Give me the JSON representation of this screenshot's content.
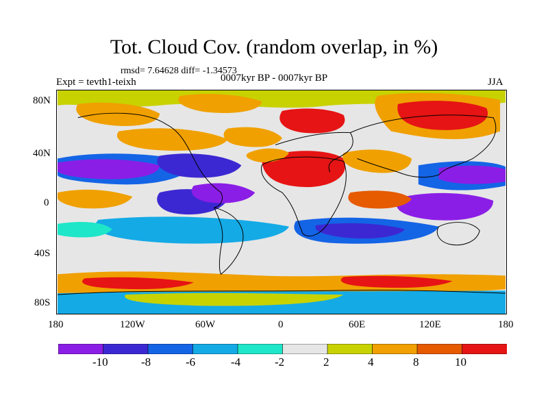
{
  "title": "Tot. Cloud Cov. (random overlap, in %)",
  "stats": "rmsd= 7.64628 diff= -1.34573",
  "experiment": "Expt = tevth1-teixh",
  "period": "0007kyr BP - 0007kyr BP",
  "season": "JJA",
  "map": {
    "lat_ticks": [
      "80N",
      "40N",
      "0",
      "40S",
      "80S"
    ],
    "lon_ticks": [
      "180",
      "120W",
      "60W",
      "0",
      "60E",
      "120E",
      "180"
    ]
  },
  "colorbar": {
    "labels": [
      "-10",
      "-8",
      "-6",
      "-4",
      "-2",
      "2",
      "4",
      "8",
      "10"
    ],
    "bins": [
      {
        "color": "#8B1EE6"
      },
      {
        "color": "#3C28D2"
      },
      {
        "color": "#1464E6"
      },
      {
        "color": "#14AAE6"
      },
      {
        "color": "#1EE6C8"
      },
      {
        "color": "#E6E6E6"
      },
      {
        "color": "#C8D200"
      },
      {
        "color": "#F0A000"
      },
      {
        "color": "#E65A00"
      },
      {
        "color": "#E61414"
      }
    ]
  }
}
